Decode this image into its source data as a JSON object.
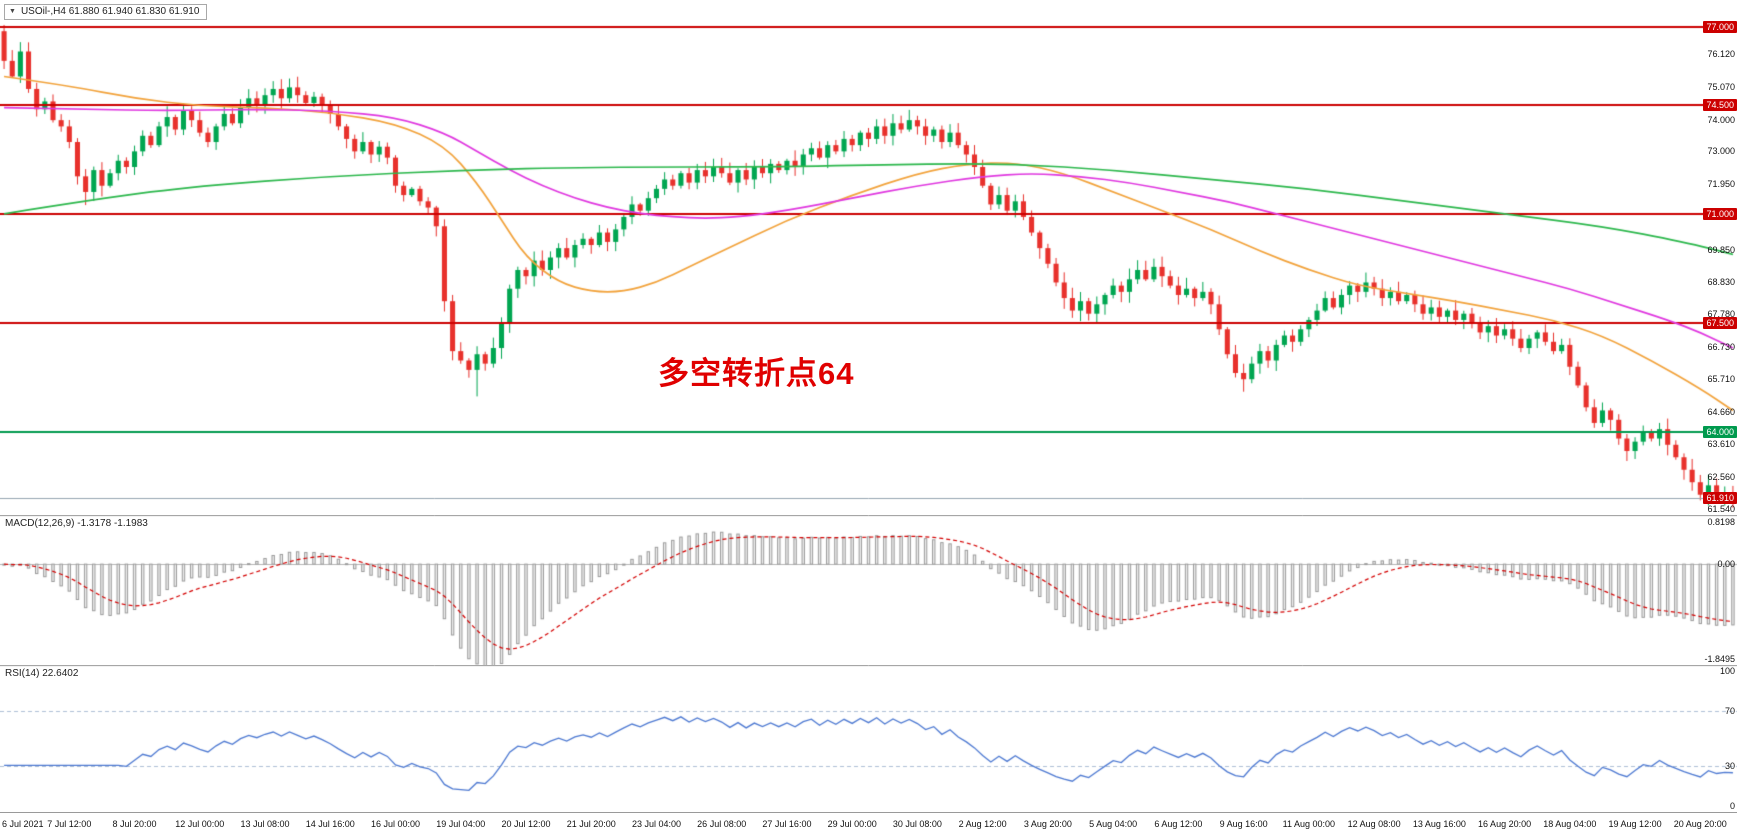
{
  "window": {
    "dropdown_arrow": "▼",
    "symbol_text": "USOil-,H4 61.880 61.940 61.830 61.910"
  },
  "annotation": {
    "text": "多空转折点64",
    "color": "#e00000"
  },
  "colors": {
    "bull": "#00a651",
    "bear": "#e8312c",
    "resistance_line": "#cc0000",
    "support_line": "#009a4e",
    "bid_line": "#95a5b1",
    "ma_fast": "#f2a33c",
    "ma_mid": "#e038e0",
    "ma_slow": "#2db84d",
    "macd_hist_fill": "#ececec",
    "macd_hist_stroke": "#9b9b9b",
    "macd_signal": "#d40000",
    "rsi_line": "#4d79d2",
    "rsi_level": "#aebfd6",
    "separator": "#9a9a9a"
  },
  "chart_data": [
    {
      "type": "candlestick",
      "symbol": "USOil-",
      "timeframe": "H4",
      "ohlc_display": {
        "open": "61.880",
        "high": "61.940",
        "low": "61.830",
        "close": "61.910"
      },
      "x_labels": [
        "6 Jul 2021",
        "7 Jul 12:00",
        "8 Jul 20:00",
        "12 Jul 00:00",
        "13 Jul 08:00",
        "14 Jul 16:00",
        "16 Jul 00:00",
        "19 Jul 04:00",
        "20 Jul 12:00",
        "21 Jul 20:00",
        "23 Jul 04:00",
        "26 Jul 08:00",
        "27 Jul 16:00",
        "29 Jul 00:00",
        "30 Jul 08:00",
        "2 Aug 12:00",
        "3 Aug 20:00",
        "5 Aug 04:00",
        "6 Aug 12:00",
        "9 Aug 16:00",
        "11 Aug 00:00",
        "12 Aug 08:00",
        "13 Aug 16:00",
        "16 Aug 20:00",
        "18 Aug 04:00",
        "19 Aug 12:00",
        "20 Aug 20:00"
      ],
      "bars_per_label": 8,
      "ylim": [
        61.35,
        77.85
      ],
      "open_first": 76.85,
      "closes": [
        75.9,
        75.4,
        76.2,
        75.0,
        74.35,
        74.6,
        74.0,
        73.8,
        73.3,
        72.2,
        71.7,
        72.4,
        71.9,
        72.3,
        72.7,
        72.5,
        73.0,
        73.5,
        73.2,
        73.8,
        74.1,
        73.7,
        74.3,
        74.0,
        73.6,
        73.3,
        73.8,
        74.2,
        73.9,
        74.4,
        74.7,
        74.5,
        74.8,
        75.0,
        74.7,
        75.05,
        74.8,
        74.55,
        74.75,
        74.5,
        74.2,
        73.8,
        73.4,
        73.0,
        73.3,
        72.9,
        73.15,
        72.8,
        71.9,
        71.6,
        71.8,
        71.4,
        71.2,
        70.6,
        68.2,
        66.6,
        66.3,
        66.0,
        66.5,
        66.2,
        66.7,
        67.5,
        68.6,
        69.2,
        69.0,
        69.5,
        69.2,
        69.6,
        69.9,
        69.6,
        70.0,
        70.2,
        70.0,
        70.4,
        70.1,
        70.5,
        70.9,
        71.3,
        71.1,
        71.5,
        71.8,
        72.1,
        71.9,
        72.3,
        72.0,
        72.4,
        72.2,
        72.5,
        72.3,
        72.0,
        72.4,
        72.1,
        72.5,
        72.3,
        72.6,
        72.4,
        72.7,
        72.5,
        72.9,
        73.1,
        72.8,
        73.2,
        73.0,
        73.4,
        73.2,
        73.6,
        73.4,
        73.8,
        73.5,
        73.9,
        73.7,
        74.0,
        73.8,
        73.5,
        73.7,
        73.3,
        73.6,
        73.2,
        72.9,
        72.5,
        71.9,
        71.3,
        71.6,
        71.1,
        71.4,
        70.9,
        70.4,
        69.9,
        69.4,
        68.8,
        68.3,
        67.9,
        68.2,
        67.8,
        68.1,
        68.4,
        68.7,
        68.5,
        68.9,
        69.2,
        68.9,
        69.3,
        69.0,
        68.7,
        68.4,
        68.6,
        68.3,
        68.5,
        68.1,
        67.3,
        66.5,
        65.9,
        65.7,
        66.2,
        66.6,
        66.3,
        66.8,
        67.1,
        66.9,
        67.3,
        67.6,
        67.9,
        68.3,
        68.0,
        68.4,
        68.7,
        68.5,
        68.8,
        68.6,
        68.3,
        68.5,
        68.2,
        68.4,
        68.1,
        67.8,
        68.0,
        67.7,
        67.9,
        67.6,
        67.8,
        67.5,
        67.2,
        67.4,
        67.1,
        67.3,
        67.0,
        66.7,
        67.0,
        67.2,
        66.9,
        66.6,
        66.8,
        66.1,
        65.5,
        64.8,
        64.3,
        64.7,
        64.4,
        63.8,
        63.4,
        63.7,
        64.0,
        63.8,
        64.1,
        63.6,
        63.2,
        62.8,
        62.4,
        62.0,
        62.3,
        61.9,
        61.95,
        61.91
      ],
      "wick_overrides": {
        "high": {
          "0": 77.05,
          "2": 76.5,
          "33": 75.25,
          "111": 74.15,
          "203": 64.3
        },
        "low": {
          "10": 71.28,
          "58": 65.15,
          "152": 65.3,
          "212": 61.58
        }
      },
      "hlines": [
        {
          "price": 77.0,
          "label": "77.000",
          "color": "#cc0000",
          "width": 2,
          "tag": "red"
        },
        {
          "price": 74.5,
          "label": "74.500",
          "color": "#cc0000",
          "width": 2,
          "tag": "red"
        },
        {
          "price": 71.0,
          "label": "71.000",
          "color": "#cc0000",
          "width": 2,
          "tag": "red"
        },
        {
          "price": 67.5,
          "label": "67.500",
          "color": "#cc0000",
          "width": 2,
          "tag": "red"
        },
        {
          "price": 64.0,
          "label": "64.000",
          "color": "#009a4e",
          "width": 2,
          "tag": "green"
        },
        {
          "price": 61.91,
          "label": "61.910",
          "color": "#95a5b1",
          "width": 1,
          "tag": "current"
        }
      ],
      "axis_ticks": [
        {
          "price": 76.12,
          "label": "76.120"
        },
        {
          "price": 75.07,
          "label": "75.070"
        },
        {
          "price": 74.0,
          "label": "74.000"
        },
        {
          "price": 73.0,
          "label": "73.000"
        },
        {
          "price": 71.95,
          "label": "71.950"
        },
        {
          "price": 69.85,
          "label": "69.850"
        },
        {
          "price": 68.83,
          "label": "68.830"
        },
        {
          "price": 67.78,
          "label": "67.780"
        },
        {
          "price": 66.73,
          "label": "66.730"
        },
        {
          "price": 65.71,
          "label": "65.710"
        },
        {
          "price": 64.66,
          "label": "64.660"
        },
        {
          "price": 63.61,
          "label": "63.610"
        },
        {
          "price": 62.56,
          "label": "62.560"
        },
        {
          "price": 61.54,
          "label": "61.540"
        }
      ],
      "moving_averages": [
        {
          "name": "ma-fast-orange",
          "color": "#f2a33c",
          "points": [
            [
              0,
              75.4
            ],
            [
              8,
              75.1
            ],
            [
              16,
              74.7
            ],
            [
              24,
              74.45
            ],
            [
              32,
              74.4
            ],
            [
              40,
              74.25
            ],
            [
              48,
              73.9
            ],
            [
              54,
              73.2
            ],
            [
              58,
              72.0
            ],
            [
              61,
              70.8
            ],
            [
              64,
              69.6
            ],
            [
              68,
              68.8
            ],
            [
              72,
              68.5
            ],
            [
              76,
              68.5
            ],
            [
              80,
              68.8
            ],
            [
              84,
              69.3
            ],
            [
              88,
              69.8
            ],
            [
              96,
              70.8
            ],
            [
              104,
              71.6
            ],
            [
              112,
              72.3
            ],
            [
              118,
              72.6
            ],
            [
              124,
              72.65
            ],
            [
              130,
              72.3
            ],
            [
              136,
              71.7
            ],
            [
              142,
              71.1
            ],
            [
              148,
              70.5
            ],
            [
              154,
              69.8
            ],
            [
              160,
              69.2
            ],
            [
              166,
              68.7
            ],
            [
              172,
              68.45
            ],
            [
              178,
              68.2
            ],
            [
              184,
              67.9
            ],
            [
              190,
              67.6
            ],
            [
              196,
              67.1
            ],
            [
              202,
              66.3
            ],
            [
              208,
              65.4
            ],
            [
              212,
              64.7
            ]
          ]
        },
        {
          "name": "ma-mid-magenta",
          "color": "#e038e0",
          "points": [
            [
              0,
              74.4
            ],
            [
              10,
              74.35
            ],
            [
              20,
              74.3
            ],
            [
              30,
              74.35
            ],
            [
              40,
              74.3
            ],
            [
              48,
              74.1
            ],
            [
              54,
              73.6
            ],
            [
              58,
              73.0
            ],
            [
              62,
              72.4
            ],
            [
              66,
              71.9
            ],
            [
              70,
              71.5
            ],
            [
              74,
              71.2
            ],
            [
              78,
              71.0
            ],
            [
              82,
              70.9
            ],
            [
              86,
              70.85
            ],
            [
              90,
              70.9
            ],
            [
              96,
              71.1
            ],
            [
              104,
              71.5
            ],
            [
              112,
              71.9
            ],
            [
              120,
              72.2
            ],
            [
              126,
              72.3
            ],
            [
              132,
              72.2
            ],
            [
              138,
              72.0
            ],
            [
              144,
              71.7
            ],
            [
              150,
              71.4
            ],
            [
              156,
              71.0
            ],
            [
              162,
              70.6
            ],
            [
              168,
              70.2
            ],
            [
              174,
              69.8
            ],
            [
              180,
              69.4
            ],
            [
              186,
              69.0
            ],
            [
              192,
              68.6
            ],
            [
              198,
              68.1
            ],
            [
              204,
              67.6
            ],
            [
              208,
              67.2
            ],
            [
              212,
              66.7
            ]
          ]
        },
        {
          "name": "ma-slow-green",
          "color": "#2db84d",
          "points": [
            [
              0,
              71.0
            ],
            [
              12,
              71.5
            ],
            [
              24,
              71.9
            ],
            [
              40,
              72.2
            ],
            [
              56,
              72.4
            ],
            [
              72,
              72.5
            ],
            [
              96,
              72.5
            ],
            [
              112,
              72.6
            ],
            [
              124,
              72.6
            ],
            [
              136,
              72.4
            ],
            [
              148,
              72.1
            ],
            [
              160,
              71.8
            ],
            [
              172,
              71.4
            ],
            [
              184,
              71.0
            ],
            [
              196,
              70.6
            ],
            [
              206,
              70.1
            ],
            [
              212,
              69.7
            ]
          ]
        }
      ]
    },
    {
      "type": "bar",
      "name": "MACD",
      "label": "MACD(12,26,9) -1.3178 -1.1983",
      "params": {
        "fast": 12,
        "slow": 26,
        "signal": 9
      },
      "current_values": [
        "-1.3178",
        "-1.1983"
      ],
      "axis_ticks": [
        {
          "value": 0.8198,
          "label": "0.8198"
        },
        {
          "value": 0.0,
          "label": "0.00"
        },
        {
          "value": -1.8495,
          "label": "-1.8495"
        }
      ],
      "ylim": [
        -1.95,
        0.95
      ],
      "derived_from_closes": true
    },
    {
      "type": "line",
      "name": "RSI",
      "label": "RSI(14) 22.6402",
      "period": 14,
      "current_value": "22.6402",
      "axis_ticks": [
        {
          "value": 100,
          "label": "100"
        },
        {
          "value": 70,
          "label": "70"
        },
        {
          "value": 30,
          "label": "30"
        },
        {
          "value": 0,
          "label": "0"
        }
      ],
      "levels": [
        70,
        30
      ],
      "ylim": [
        0,
        100
      ],
      "derived_from_closes": true
    }
  ]
}
